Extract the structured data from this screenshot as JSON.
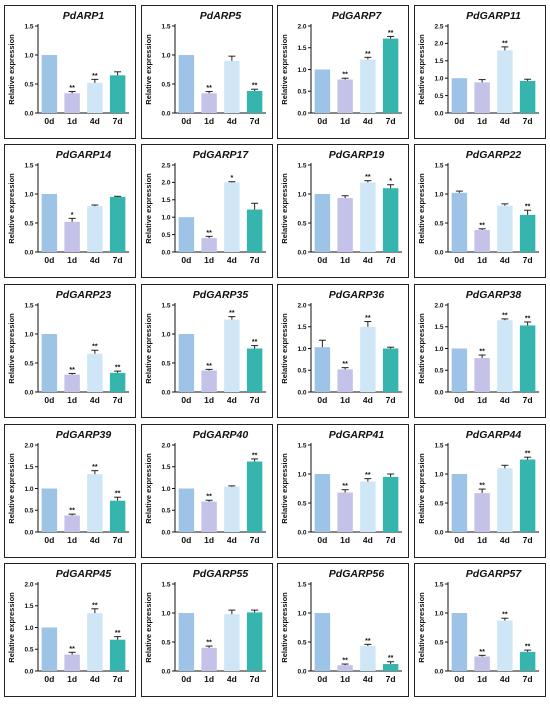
{
  "figure": {
    "y_label": "Relative expression",
    "categories": [
      "0d",
      "1d",
      "4d",
      "7d"
    ],
    "bar_colors": [
      "#9dc3e6",
      "#c5c2ea",
      "#cfe6f7",
      "#36b5ae"
    ]
  },
  "chart_data": [
    {
      "type": "bar",
      "title": "PdARP1",
      "categories": [
        "0d",
        "1d",
        "4d",
        "7d"
      ],
      "values": [
        1.0,
        0.34,
        0.52,
        0.65
      ],
      "errors": [
        0,
        0.03,
        0.06,
        0.06
      ],
      "significance": [
        "",
        "**",
        "**",
        ""
      ],
      "ylim": [
        0,
        1.5
      ],
      "yticks": [
        "0.0",
        "0.5",
        "1.0",
        "1.5"
      ],
      "ylabel": "Relative expression"
    },
    {
      "type": "bar",
      "title": "PdARP5",
      "categories": [
        "0d",
        "1d",
        "4d",
        "7d"
      ],
      "values": [
        1.0,
        0.34,
        0.9,
        0.38
      ],
      "errors": [
        0,
        0.03,
        0.08,
        0.03
      ],
      "significance": [
        "",
        "**",
        "",
        "**"
      ],
      "ylim": [
        0,
        1.5
      ],
      "yticks": [
        "0.0",
        "0.5",
        "1.0",
        "1.5"
      ],
      "ylabel": "Relative expression"
    },
    {
      "type": "bar",
      "title": "PdGARP7",
      "categories": [
        "0d",
        "1d",
        "4d",
        "7d"
      ],
      "values": [
        1.0,
        0.77,
        1.23,
        1.71
      ],
      "errors": [
        0,
        0.03,
        0.05,
        0.05
      ],
      "significance": [
        "",
        "**",
        "**",
        "**"
      ],
      "ylim": [
        0,
        2.0
      ],
      "yticks": [
        "0.0",
        "0.5",
        "1.0",
        "1.5",
        "2.0"
      ],
      "ylabel": "Relative expression"
    },
    {
      "type": "bar",
      "title": "PdGARP11",
      "categories": [
        "0d",
        "1d",
        "4d",
        "7d"
      ],
      "values": [
        1.0,
        0.88,
        1.8,
        0.92
      ],
      "errors": [
        0,
        0.08,
        0.1,
        0.05
      ],
      "significance": [
        "",
        "",
        "**",
        ""
      ],
      "ylim": [
        0,
        2.5
      ],
      "yticks": [
        "0.0",
        "0.5",
        "1.0",
        "1.5",
        "2.0",
        "2.5"
      ],
      "ylabel": "Relative expression"
    },
    {
      "type": "bar",
      "title": "PdGARP14",
      "categories": [
        "0d",
        "1d",
        "4d",
        "7d"
      ],
      "values": [
        1.0,
        0.52,
        0.79,
        0.95
      ],
      "errors": [
        0,
        0.06,
        0.02,
        0.01
      ],
      "significance": [
        "",
        "*",
        "",
        ""
      ],
      "ylim": [
        0,
        1.5
      ],
      "yticks": [
        "0.0",
        "0.5",
        "1.0",
        "1.5"
      ],
      "ylabel": "Relative expression"
    },
    {
      "type": "bar",
      "title": "PdGARP17",
      "categories": [
        "0d",
        "1d",
        "4d",
        "7d"
      ],
      "values": [
        1.0,
        0.4,
        2.0,
        1.22
      ],
      "errors": [
        0,
        0.05,
        0.02,
        0.18
      ],
      "significance": [
        "",
        "**",
        "*",
        ""
      ],
      "ylim": [
        0,
        2.5
      ],
      "yticks": [
        "0.0",
        "0.5",
        "1.0",
        "1.5",
        "2.0",
        "2.5"
      ],
      "ylabel": "Relative expression"
    },
    {
      "type": "bar",
      "title": "PdGARP19",
      "categories": [
        "0d",
        "1d",
        "4d",
        "7d"
      ],
      "values": [
        1.0,
        0.93,
        1.2,
        1.1
      ],
      "errors": [
        0,
        0.04,
        0.03,
        0.06
      ],
      "significance": [
        "",
        "",
        "**",
        "*"
      ],
      "ylim": [
        0,
        1.5
      ],
      "yticks": [
        "0.0",
        "0.5",
        "1.0",
        "1.5"
      ],
      "ylabel": "Relative expression"
    },
    {
      "type": "bar",
      "title": "PdGARP22",
      "categories": [
        "0d",
        "1d",
        "4d",
        "7d"
      ],
      "values": [
        1.02,
        0.38,
        0.8,
        0.64
      ],
      "errors": [
        0.03,
        0.02,
        0.03,
        0.08
      ],
      "significance": [
        "",
        "**",
        "",
        "**"
      ],
      "ylim": [
        0,
        1.5
      ],
      "yticks": [
        "0.0",
        "0.5",
        "1.0",
        "1.5"
      ],
      "ylabel": "Relative expression"
    },
    {
      "type": "bar",
      "title": "PdGARP23",
      "categories": [
        "0d",
        "1d",
        "4d",
        "7d"
      ],
      "values": [
        1.0,
        0.3,
        0.66,
        0.33
      ],
      "errors": [
        0,
        0.02,
        0.06,
        0.03
      ],
      "significance": [
        "",
        "**",
        "**",
        "**"
      ],
      "ylim": [
        0,
        1.5
      ],
      "yticks": [
        "0.0",
        "0.5",
        "1.0",
        "1.5"
      ],
      "ylabel": "Relative expression"
    },
    {
      "type": "bar",
      "title": "PdGARP35",
      "categories": [
        "0d",
        "1d",
        "4d",
        "7d"
      ],
      "values": [
        1.0,
        0.37,
        1.25,
        0.75
      ],
      "errors": [
        0,
        0.02,
        0.05,
        0.05
      ],
      "significance": [
        "",
        "**",
        "**",
        "**"
      ],
      "ylim": [
        0,
        1.5
      ],
      "yticks": [
        "0.0",
        "0.5",
        "1.0",
        "1.5"
      ],
      "ylabel": "Relative expression"
    },
    {
      "type": "bar",
      "title": "PdGARP36",
      "categories": [
        "0d",
        "1d",
        "4d",
        "7d"
      ],
      "values": [
        1.03,
        0.52,
        1.5,
        1.0
      ],
      "errors": [
        0.16,
        0.04,
        0.12,
        0.03
      ],
      "significance": [
        "",
        "**",
        "**",
        ""
      ],
      "ylim": [
        0,
        2.0
      ],
      "yticks": [
        "0.0",
        "0.5",
        "1.0",
        "1.5",
        "2.0"
      ],
      "ylabel": "Relative expression"
    },
    {
      "type": "bar",
      "title": "PdGARP38",
      "categories": [
        "0d",
        "1d",
        "4d",
        "7d"
      ],
      "values": [
        1.0,
        0.78,
        1.65,
        1.53
      ],
      "errors": [
        0,
        0.07,
        0.03,
        0.08
      ],
      "significance": [
        "",
        "**",
        "**",
        "**"
      ],
      "ylim": [
        0,
        2.0
      ],
      "yticks": [
        "0.0",
        "0.5",
        "1.0",
        "1.5",
        "2.0"
      ],
      "ylabel": "Relative expression"
    },
    {
      "type": "bar",
      "title": "PdGARP39",
      "categories": [
        "0d",
        "1d",
        "4d",
        "7d"
      ],
      "values": [
        1.0,
        0.38,
        1.33,
        0.72
      ],
      "errors": [
        0,
        0.03,
        0.08,
        0.08
      ],
      "significance": [
        "",
        "**",
        "**",
        "**"
      ],
      "ylim": [
        0,
        2.0
      ],
      "yticks": [
        "0.0",
        "0.5",
        "1.0",
        "1.5",
        "2.0"
      ],
      "ylabel": "Relative expression"
    },
    {
      "type": "bar",
      "title": "PdGARP40",
      "categories": [
        "0d",
        "1d",
        "4d",
        "7d"
      ],
      "values": [
        1.0,
        0.7,
        1.04,
        1.62
      ],
      "errors": [
        0,
        0.03,
        0.02,
        0.06
      ],
      "significance": [
        "",
        "**",
        "",
        "**"
      ],
      "ylim": [
        0,
        2.0
      ],
      "yticks": [
        "0.0",
        "0.5",
        "1.0",
        "1.5",
        "2.0"
      ],
      "ylabel": "Relative expression"
    },
    {
      "type": "bar",
      "title": "PdGARP41",
      "categories": [
        "0d",
        "1d",
        "4d",
        "7d"
      ],
      "values": [
        1.0,
        0.68,
        0.87,
        0.95
      ],
      "errors": [
        0,
        0.05,
        0.05,
        0.05
      ],
      "significance": [
        "",
        "**",
        "**",
        ""
      ],
      "ylim": [
        0,
        1.5
      ],
      "yticks": [
        "0.0",
        "0.5",
        "1.0",
        "1.5"
      ],
      "ylabel": "Relative expression"
    },
    {
      "type": "bar",
      "title": "PdGARP44",
      "categories": [
        "0d",
        "1d",
        "4d",
        "7d"
      ],
      "values": [
        1.0,
        0.67,
        1.1,
        1.25
      ],
      "errors": [
        0,
        0.07,
        0.05,
        0.04
      ],
      "significance": [
        "",
        "**",
        "",
        "**"
      ],
      "ylim": [
        0,
        1.5
      ],
      "yticks": [
        "0.0",
        "0.5",
        "1.0",
        "1.5"
      ],
      "ylabel": "Relative expression"
    },
    {
      "type": "bar",
      "title": "PdGARP45",
      "categories": [
        "0d",
        "1d",
        "4d",
        "7d"
      ],
      "values": [
        1.0,
        0.38,
        1.33,
        0.72
      ],
      "errors": [
        0,
        0.05,
        0.1,
        0.07
      ],
      "significance": [
        "",
        "**",
        "**",
        "**"
      ],
      "ylim": [
        0,
        2.0
      ],
      "yticks": [
        "0.0",
        "0.5",
        "1.0",
        "1.5",
        "2.0"
      ],
      "ylabel": "Relative expression"
    },
    {
      "type": "bar",
      "title": "PdGARP55",
      "categories": [
        "0d",
        "1d",
        "4d",
        "7d"
      ],
      "values": [
        1.0,
        0.4,
        0.98,
        1.01
      ],
      "errors": [
        0,
        0.03,
        0.07,
        0.04
      ],
      "significance": [
        "",
        "**",
        "",
        ""
      ],
      "ylim": [
        0,
        1.5
      ],
      "yticks": [
        "0.0",
        "0.5",
        "1.0",
        "1.5"
      ],
      "ylabel": "Relative expression"
    },
    {
      "type": "bar",
      "title": "PdGARP56",
      "categories": [
        "0d",
        "1d",
        "4d",
        "7d"
      ],
      "values": [
        1.0,
        0.1,
        0.43,
        0.12
      ],
      "errors": [
        0,
        0.02,
        0.03,
        0.04
      ],
      "significance": [
        "",
        "**",
        "**",
        "**"
      ],
      "ylim": [
        0,
        1.5
      ],
      "yticks": [
        "0.0",
        "0.5",
        "1.0",
        "1.5"
      ],
      "ylabel": "Relative expression"
    },
    {
      "type": "bar",
      "title": "PdGARP57",
      "categories": [
        "0d",
        "1d",
        "4d",
        "7d"
      ],
      "values": [
        1.0,
        0.25,
        0.87,
        0.33
      ],
      "errors": [
        0,
        0.02,
        0.04,
        0.03
      ],
      "significance": [
        "",
        "**",
        "**",
        "**"
      ],
      "ylim": [
        0,
        1.5
      ],
      "yticks": [
        "0.0",
        "0.5",
        "1.0",
        "1.5"
      ],
      "ylabel": "Relative expression"
    }
  ]
}
